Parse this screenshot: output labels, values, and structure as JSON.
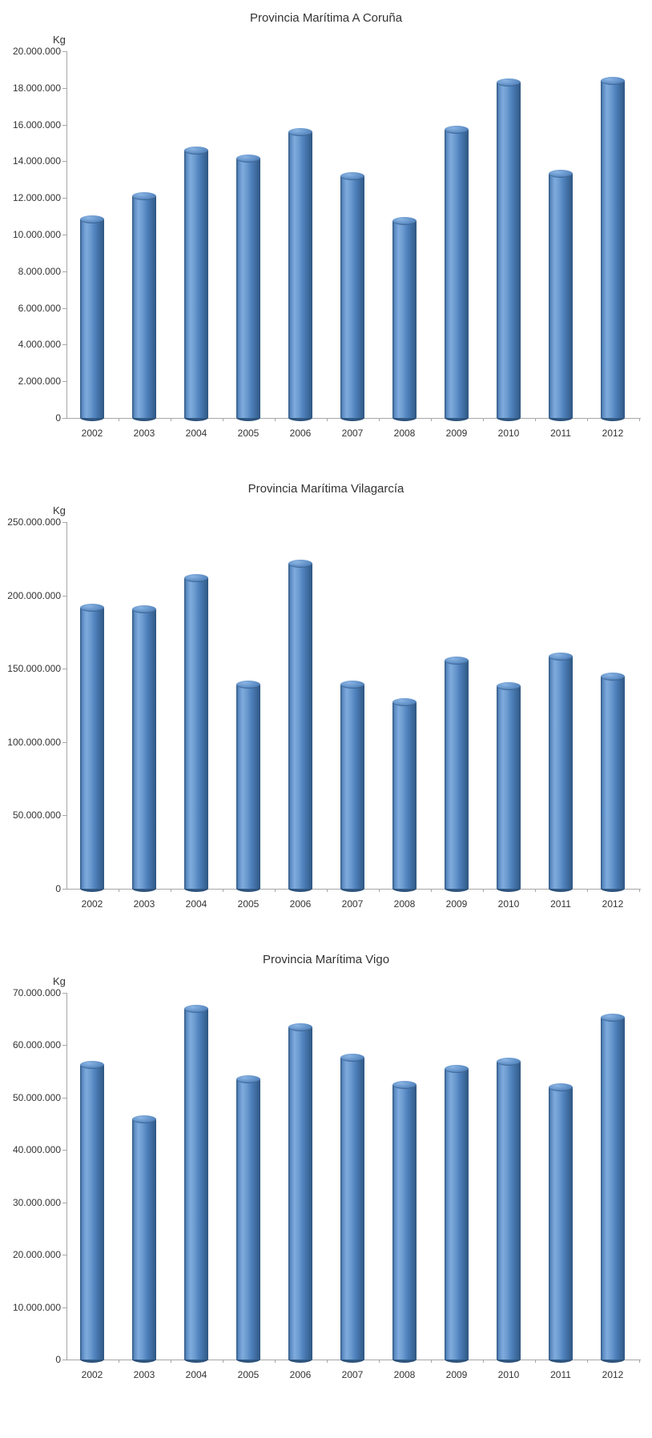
{
  "page": {
    "background_color": "#ffffff",
    "text_color": "#333333",
    "axis_color": "#a6a6a6"
  },
  "chart_data": [
    {
      "type": "bar",
      "title": "Provincia Marítima A Coruña",
      "unit_label": "Kg",
      "xlabel": "",
      "ylabel": "Kg",
      "legend": "none",
      "grid": "off",
      "bar_style": "cylinder-3d",
      "bar_color": "#4f81bd",
      "bar_highlight_color": "#7fabdd",
      "bar_edge_color": "#2f5782",
      "categories": [
        "2002",
        "2003",
        "2004",
        "2005",
        "2006",
        "2007",
        "2008",
        "2009",
        "2010",
        "2011",
        "2012"
      ],
      "values": [
        10850000,
        12100000,
        14600000,
        14150000,
        15600000,
        13200000,
        10750000,
        15700000,
        18300000,
        13300000,
        18400000
      ],
      "ylim": [
        0,
        20000000
      ],
      "ytick_step": 2000000,
      "y_tick_labels": [
        "0",
        "2.000.000",
        "4.000.000",
        "6.000.000",
        "8.000.000",
        "10.000.000",
        "12.000.000",
        "14.000.000",
        "16.000.000",
        "18.000.000",
        "20.000.000"
      ]
    },
    {
      "type": "bar",
      "title": "Provincia Marítima Vilagarcía",
      "unit_label": "Kg",
      "xlabel": "",
      "ylabel": "Kg",
      "legend": "none",
      "grid": "off",
      "bar_style": "cylinder-3d",
      "bar_color": "#4f81bd",
      "bar_highlight_color": "#7fabdd",
      "bar_edge_color": "#2f5782",
      "categories": [
        "2002",
        "2003",
        "2004",
        "2005",
        "2006",
        "2007",
        "2008",
        "2009",
        "2010",
        "2011",
        "2012"
      ],
      "values": [
        191500000,
        190500000,
        212000000,
        139000000,
        221500000,
        139000000,
        127000000,
        155500000,
        138000000,
        158500000,
        144500000
      ],
      "ylim": [
        0,
        250000000
      ],
      "ytick_step": 50000000,
      "y_tick_labels": [
        "0",
        "50.000.000",
        "100.000.000",
        "150.000.000",
        "200.000.000",
        "250.000.000"
      ]
    },
    {
      "type": "bar",
      "title": "Provincia Marítima Vigo",
      "unit_label": "Kg",
      "xlabel": "",
      "ylabel": "Kg",
      "legend": "none",
      "grid": "off",
      "bar_style": "cylinder-3d",
      "bar_color": "#4f81bd",
      "bar_highlight_color": "#7fabdd",
      "bar_edge_color": "#2f5782",
      "categories": [
        "2002",
        "2003",
        "2004",
        "2005",
        "2006",
        "2007",
        "2008",
        "2009",
        "2010",
        "2011",
        "2012"
      ],
      "values": [
        56300000,
        45800000,
        67000000,
        53500000,
        63400000,
        57600000,
        52400000,
        55500000,
        56900000,
        51900000,
        65200000
      ],
      "ylim": [
        0,
        70000000
      ],
      "ytick_step": 10000000,
      "y_tick_labels": [
        "0",
        "10.000.000",
        "20.000.000",
        "30.000.000",
        "40.000.000",
        "50.000.000",
        "60.000.000",
        "70.000.000"
      ]
    }
  ]
}
